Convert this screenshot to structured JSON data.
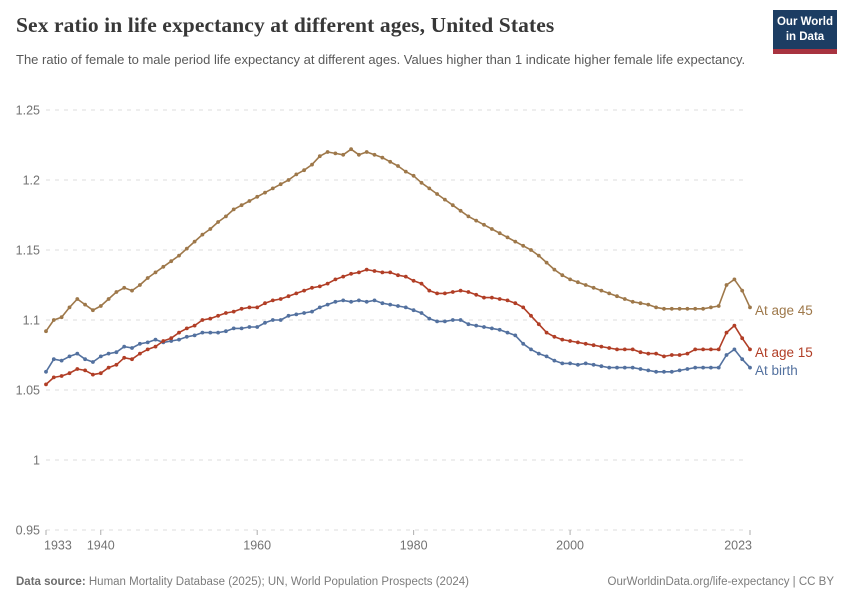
{
  "header": {
    "title": "Sex ratio in life expectancy at different ages, United States",
    "subtitle": "The ratio of female to male period life expectancy at different ages. Values higher than 1 indicate higher female life expectancy.",
    "logo": {
      "line1": "Our World",
      "line2": "in Data",
      "bg_color": "#1c3d63",
      "accent_color": "#a83340"
    }
  },
  "footer": {
    "source_label": "Data source:",
    "source_text": " Human Mortality Database (2025); UN, World Population Prospects (2024)",
    "right_text": "OurWorldinData.org/life-expectancy | CC BY"
  },
  "chart_data": {
    "type": "line",
    "title": "Sex ratio in life expectancy at different ages, United States",
    "xlabel": "",
    "ylabel": "",
    "ylim": [
      0.95,
      1.25
    ],
    "yticks": [
      0.95,
      1.0,
      1.05,
      1.1,
      1.15,
      1.2,
      1.25
    ],
    "ytick_labels": [
      "0.95",
      "1",
      "1.05",
      "1.1",
      "1.15",
      "1.2",
      "1.25"
    ],
    "xticks": [
      1933,
      1940,
      1960,
      1980,
      2000,
      2023
    ],
    "grid": "dashed-horizontal",
    "legend_position": "end-of-line-labels",
    "marker": "circle",
    "colors": {
      "grid": "#dcdcdc",
      "axis_tick": "#adadad",
      "tick_text": "#737373"
    },
    "x": [
      1933,
      1934,
      1935,
      1936,
      1937,
      1938,
      1939,
      1940,
      1941,
      1942,
      1943,
      1944,
      1945,
      1946,
      1947,
      1948,
      1949,
      1950,
      1951,
      1952,
      1953,
      1954,
      1955,
      1956,
      1957,
      1958,
      1959,
      1960,
      1961,
      1962,
      1963,
      1964,
      1965,
      1966,
      1967,
      1968,
      1969,
      1970,
      1971,
      1972,
      1973,
      1974,
      1975,
      1976,
      1977,
      1978,
      1979,
      1980,
      1981,
      1982,
      1983,
      1984,
      1985,
      1986,
      1987,
      1988,
      1989,
      1990,
      1991,
      1992,
      1993,
      1994,
      1995,
      1996,
      1997,
      1998,
      1999,
      2000,
      2001,
      2002,
      2003,
      2004,
      2005,
      2006,
      2007,
      2008,
      2009,
      2010,
      2011,
      2012,
      2013,
      2014,
      2015,
      2016,
      2017,
      2018,
      2019,
      2020,
      2021,
      2022,
      2023
    ],
    "series": [
      {
        "name": "At age 45",
        "color": "#9e784a",
        "values": [
          1.092,
          1.1,
          1.102,
          1.109,
          1.115,
          1.111,
          1.107,
          1.11,
          1.115,
          1.12,
          1.123,
          1.121,
          1.125,
          1.13,
          1.134,
          1.138,
          1.142,
          1.146,
          1.151,
          1.156,
          1.161,
          1.165,
          1.17,
          1.174,
          1.179,
          1.182,
          1.185,
          1.188,
          1.191,
          1.194,
          1.197,
          1.2,
          1.204,
          1.207,
          1.211,
          1.217,
          1.22,
          1.219,
          1.218,
          1.222,
          1.218,
          1.22,
          1.218,
          1.216,
          1.213,
          1.21,
          1.206,
          1.203,
          1.198,
          1.194,
          1.19,
          1.186,
          1.182,
          1.178,
          1.174,
          1.171,
          1.168,
          1.165,
          1.162,
          1.159,
          1.156,
          1.153,
          1.15,
          1.146,
          1.141,
          1.136,
          1.132,
          1.129,
          1.127,
          1.125,
          1.123,
          1.121,
          1.119,
          1.117,
          1.115,
          1.113,
          1.112,
          1.111,
          1.109,
          1.108,
          1.108,
          1.108,
          1.108,
          1.108,
          1.108,
          1.109,
          1.11,
          1.125,
          1.129,
          1.121,
          1.109
        ]
      },
      {
        "name": "At age 15",
        "color": "#b13e26",
        "values": [
          1.054,
          1.059,
          1.06,
          1.062,
          1.065,
          1.064,
          1.061,
          1.062,
          1.066,
          1.068,
          1.073,
          1.072,
          1.076,
          1.079,
          1.081,
          1.085,
          1.087,
          1.091,
          1.094,
          1.096,
          1.1,
          1.101,
          1.103,
          1.105,
          1.106,
          1.108,
          1.109,
          1.109,
          1.112,
          1.114,
          1.115,
          1.117,
          1.119,
          1.121,
          1.123,
          1.124,
          1.126,
          1.129,
          1.131,
          1.133,
          1.134,
          1.136,
          1.135,
          1.134,
          1.134,
          1.132,
          1.131,
          1.128,
          1.126,
          1.121,
          1.119,
          1.119,
          1.12,
          1.121,
          1.12,
          1.118,
          1.116,
          1.116,
          1.115,
          1.114,
          1.112,
          1.109,
          1.103,
          1.097,
          1.091,
          1.088,
          1.086,
          1.085,
          1.084,
          1.083,
          1.082,
          1.081,
          1.08,
          1.079,
          1.079,
          1.079,
          1.077,
          1.076,
          1.076,
          1.074,
          1.075,
          1.075,
          1.076,
          1.079,
          1.079,
          1.079,
          1.079,
          1.091,
          1.096,
          1.087,
          1.079
        ]
      },
      {
        "name": "At birth",
        "color": "#53719f",
        "values": [
          1.063,
          1.072,
          1.071,
          1.074,
          1.076,
          1.072,
          1.07,
          1.074,
          1.076,
          1.077,
          1.081,
          1.08,
          1.083,
          1.084,
          1.086,
          1.084,
          1.085,
          1.086,
          1.088,
          1.089,
          1.091,
          1.091,
          1.091,
          1.092,
          1.094,
          1.094,
          1.095,
          1.095,
          1.098,
          1.1,
          1.1,
          1.103,
          1.104,
          1.105,
          1.106,
          1.109,
          1.111,
          1.113,
          1.114,
          1.113,
          1.114,
          1.113,
          1.114,
          1.112,
          1.111,
          1.11,
          1.109,
          1.107,
          1.105,
          1.101,
          1.099,
          1.099,
          1.1,
          1.1,
          1.097,
          1.096,
          1.095,
          1.094,
          1.093,
          1.091,
          1.089,
          1.083,
          1.079,
          1.076,
          1.074,
          1.071,
          1.069,
          1.069,
          1.068,
          1.069,
          1.068,
          1.067,
          1.066,
          1.066,
          1.066,
          1.066,
          1.065,
          1.064,
          1.063,
          1.063,
          1.063,
          1.064,
          1.065,
          1.066,
          1.066,
          1.066,
          1.066,
          1.075,
          1.079,
          1.072,
          1.066
        ]
      }
    ]
  }
}
